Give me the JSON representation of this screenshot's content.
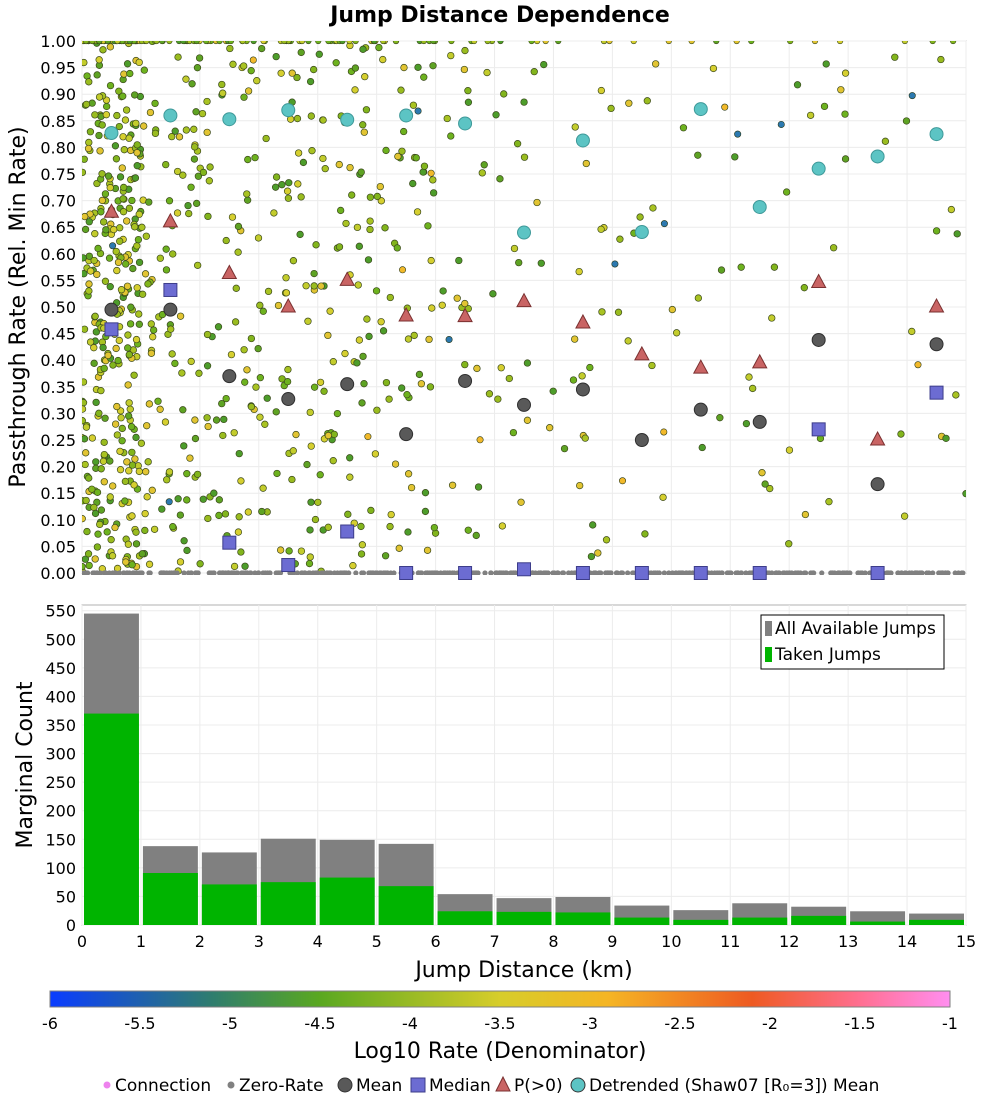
{
  "chart_data": [
    {
      "id": "scatter",
      "type": "scatter",
      "title": "Jump Distance Dependence",
      "xlabel": "",
      "ylabel": "Passthrough Rate (Rel. Min Rate)",
      "xlim": [
        0,
        15
      ],
      "ylim": [
        0,
        1
      ],
      "x_ticks": [
        "0",
        "1",
        "2",
        "3",
        "4",
        "5",
        "6",
        "7",
        "8",
        "9",
        "10",
        "11",
        "12",
        "13",
        "14",
        "15"
      ],
      "y_ticks": [
        "0.00",
        "0.05",
        "0.10",
        "0.15",
        "0.20",
        "0.25",
        "0.30",
        "0.35",
        "0.40",
        "0.45",
        "0.50",
        "0.55",
        "0.60",
        "0.65",
        "0.70",
        "0.75",
        "0.80",
        "0.85",
        "0.90",
        "0.95",
        "1.00"
      ],
      "grid": true,
      "series": [
        {
          "name": "Mean",
          "color": "#595959",
          "marker": "circle",
          "x": [
            0.5,
            1.5,
            2.5,
            3.5,
            4.5,
            5.5,
            6.5,
            7.5,
            8.5,
            9.5,
            10.5,
            11.5,
            12.5,
            13.5,
            14.5
          ],
          "y": [
            0.495,
            0.495,
            0.37,
            0.327,
            0.355,
            0.261,
            0.361,
            0.316,
            0.345,
            0.25,
            0.307,
            0.284,
            0.438,
            0.167,
            0.43
          ]
        },
        {
          "name": "Median",
          "color": "#6c6cd2",
          "marker": "square",
          "x": [
            0.5,
            1.5,
            2.5,
            3.5,
            4.5,
            5.5,
            6.5,
            7.5,
            8.5,
            9.5,
            10.5,
            11.5,
            12.5,
            13.5,
            14.5
          ],
          "y": [
            0.458,
            0.532,
            0.057,
            0.015,
            0.078,
            0.0,
            0.0,
            0.007,
            0.0,
            0.0,
            0.0,
            0.0,
            0.27,
            0.0,
            0.339
          ]
        },
        {
          "name": "P(>0)",
          "color": "#c96464",
          "marker": "triangle",
          "x": [
            0.5,
            1.5,
            2.5,
            3.5,
            4.5,
            5.5,
            6.5,
            7.5,
            8.5,
            9.5,
            10.5,
            11.5,
            12.5,
            13.5,
            14.5
          ],
          "y": [
            0.678,
            0.66,
            0.563,
            0.5,
            0.55,
            0.483,
            0.482,
            0.51,
            0.47,
            0.41,
            0.385,
            0.395,
            0.546,
            0.25,
            0.5
          ]
        },
        {
          "name": "Detrended (Shaw07 [R₀=3]) Mean",
          "color": "#5cc4c4",
          "marker": "circle",
          "x": [
            0.5,
            1.5,
            2.5,
            3.5,
            4.5,
            5.5,
            6.5,
            7.5,
            8.5,
            9.5,
            10.5,
            11.5,
            12.5,
            13.5,
            14.5
          ],
          "y": [
            0.827,
            0.86,
            0.853,
            0.87,
            0.852,
            0.86,
            0.845,
            0.64,
            0.813,
            0.641,
            0.872,
            0.688,
            0.76,
            0.783,
            0.825
          ]
        }
      ],
      "connections_summary": {
        "zero_rate_y": 0.0,
        "scattered_points_color_by": "Log10 Rate (Denominator)"
      }
    },
    {
      "id": "histogram",
      "type": "bar",
      "title": "",
      "xlabel": "Jump Distance (km)",
      "ylabel": "Marginal Count",
      "xlim": [
        0,
        15
      ],
      "ylim": [
        0,
        560
      ],
      "x_ticks": [
        "0",
        "1",
        "2",
        "3",
        "4",
        "5",
        "6",
        "7",
        "8",
        "9",
        "10",
        "11",
        "12",
        "13",
        "14",
        "15"
      ],
      "y_ticks": [
        "0",
        "50",
        "100",
        "150",
        "200",
        "250",
        "300",
        "350",
        "400",
        "450",
        "500",
        "550"
      ],
      "categories": [
        "0-1",
        "1-2",
        "2-3",
        "3-4",
        "4-5",
        "5-6",
        "6-7",
        "7-8",
        "8-9",
        "9-10",
        "10-11",
        "11-12",
        "12-13",
        "13-14",
        "14-15"
      ],
      "series": [
        {
          "name": "All Available Jumps",
          "color": "#808080",
          "values": [
            545,
            138,
            127,
            151,
            149,
            142,
            54,
            47,
            49,
            34,
            26,
            38,
            32,
            24,
            20
          ]
        },
        {
          "name": "Taken Jumps",
          "color": "#00b400",
          "values": [
            370,
            91,
            71,
            75,
            83,
            68,
            24,
            23,
            22,
            13,
            9,
            13,
            16,
            6,
            9
          ]
        }
      ],
      "legend_position": "top-right"
    }
  ],
  "colorbar": {
    "label": "Log10 Rate (Denominator)",
    "ticks": [
      "-6",
      "-5.5",
      "-5",
      "-4.5",
      "-4",
      "-3.5",
      "-3",
      "-2.5",
      "-2",
      "-1.5",
      "-1"
    ],
    "range": [
      -6,
      -1
    ]
  },
  "legend": {
    "items": [
      {
        "label": "Connection",
        "color": "#ee82ee",
        "marker": "small-dot"
      },
      {
        "label": "Zero-Rate",
        "color": "#808080",
        "marker": "small-dot"
      },
      {
        "label": "Mean",
        "color": "#595959",
        "marker": "circle"
      },
      {
        "label": "Median",
        "color": "#6c6cd2",
        "marker": "square"
      },
      {
        "label": "P(>0)",
        "color": "#c96464",
        "marker": "triangle"
      },
      {
        "label": "Detrended (Shaw07 [R₀=3]) Mean",
        "color": "#5cc4c4",
        "marker": "circle"
      }
    ]
  }
}
